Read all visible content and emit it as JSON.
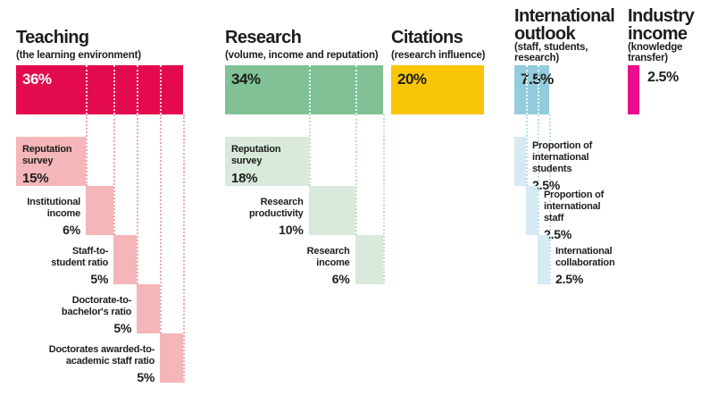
{
  "background": "#ffffff",
  "text_color": "#1d1d1b",
  "chart_data": {
    "type": "bar",
    "orientation": "horizontal-staircase",
    "unit": "%",
    "total": 100,
    "legend_position": "none",
    "grid": "dotted-guides",
    "categories": [
      {
        "name": "Teaching",
        "subtitle": "(the learning environment)",
        "weight": 36,
        "weight_label": "36%",
        "weight_label_placement": "inside",
        "weight_label_color": "#ffffff",
        "bar_color": "#e40a4e",
        "block_color": "#f4b6b8",
        "guide_color": "#efa9b0",
        "components": [
          {
            "label": "Reputation\nsurvey",
            "value": 15,
            "value_label": "15%",
            "label_placement": "inside"
          },
          {
            "label": "Institutional\nincome",
            "value": 6,
            "value_label": "6%",
            "label_placement": "left"
          },
          {
            "label": "Staff-to-\nstudent ratio",
            "value": 5,
            "value_label": "5%",
            "label_placement": "left"
          },
          {
            "label": "Doctorate-to-\nbachelor's ratio",
            "value": 5,
            "value_label": "5%",
            "label_placement": "left"
          },
          {
            "label": "Doctorates awarded-to-\nacademic staff ratio",
            "value": 5,
            "value_label": "5%",
            "label_placement": "left"
          }
        ]
      },
      {
        "name": "Research",
        "subtitle": "(volume, income and reputation)",
        "weight": 34,
        "weight_label": "34%",
        "weight_label_placement": "inside",
        "weight_label_color": "#1d1d1b",
        "bar_color": "#80c295",
        "block_color": "#d9e9dc",
        "guide_color": "#c3ddc9",
        "components": [
          {
            "label": "Reputation\nsurvey",
            "value": 18,
            "value_label": "18%",
            "label_placement": "inside"
          },
          {
            "label": "Research\nproductivity",
            "value": 10,
            "value_label": "10%",
            "label_placement": "left"
          },
          {
            "label": "Research\nincome",
            "value": 6,
            "value_label": "6%",
            "label_placement": "left"
          }
        ]
      },
      {
        "name": "Citations",
        "subtitle": "(research influence)",
        "weight": 20,
        "weight_label": "20%",
        "weight_label_placement": "inside",
        "weight_label_color": "#1d1d1b",
        "bar_color": "#f9c606",
        "components": []
      },
      {
        "name": "International\noutlook",
        "subtitle": "(staff, students,\nresearch)",
        "weight": 7.5,
        "weight_label": "7.5%",
        "weight_label_placement": "inside",
        "weight_label_color": "#1d1d1b",
        "bar_color": "#93ccdc",
        "block_color": "#d5eaf2",
        "guide_color": "#badfea",
        "components": [
          {
            "label": "Proportion of\ninternational\nstudents",
            "value": 2.5,
            "value_label": "2.5%",
            "label_placement": "right"
          },
          {
            "label": "Proportion of\ninternational\nstaff",
            "value": 2.5,
            "value_label": "2.5%",
            "label_placement": "right"
          },
          {
            "label": "International\ncollaboration",
            "value": 2.5,
            "value_label": "2.5%",
            "label_placement": "right"
          }
        ]
      },
      {
        "name": "Industry\nincome",
        "subtitle": "(knowledge\ntransfer)",
        "weight": 2.5,
        "weight_label": "2.5%",
        "weight_label_placement": "right",
        "weight_label_color": "#1d1d1b",
        "bar_color": "#eb0d8c",
        "components": []
      }
    ]
  }
}
